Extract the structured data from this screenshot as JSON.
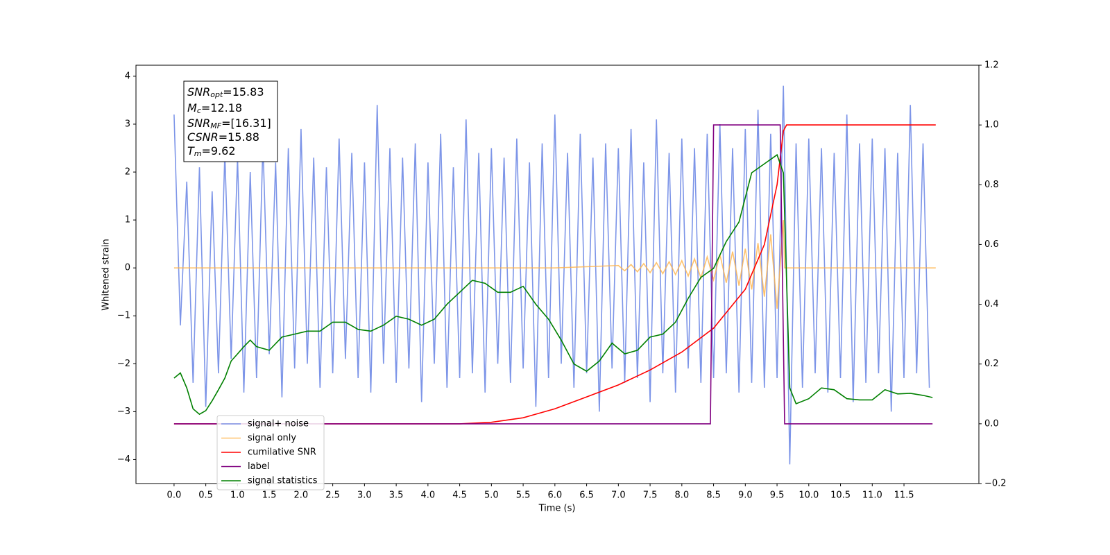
{
  "chart_data": {
    "type": "line",
    "xlabel": "Time (s)",
    "ylabel": "Whitened strain",
    "xlim": [
      -0.6,
      12.68
    ],
    "ylim": [
      -4.5,
      4.23
    ],
    "y2lim": [
      -0.2,
      1.2
    ],
    "xticks": [
      {
        "value": 0,
        "label": "0.0"
      },
      0.5,
      {
        "value": 1,
        "label": "1.0"
      },
      1.5,
      {
        "value": 2,
        "label": "2.0"
      },
      2.5,
      {
        "value": 3,
        "label": "3.0"
      },
      3.5,
      {
        "value": 4,
        "label": "4.0"
      },
      4.5,
      {
        "value": 5,
        "label": "5.0"
      },
      5.5,
      {
        "value": 6,
        "label": "6.0"
      },
      6.5,
      {
        "value": 7,
        "label": "7.0"
      },
      7.5,
      {
        "value": 8,
        "label": "8.0"
      },
      8.5,
      {
        "value": 9,
        "label": "9.0"
      },
      9.5,
      {
        "value": 10,
        "label": "10.0"
      },
      10.5,
      {
        "value": 11,
        "label": "11.0"
      },
      11.5
    ],
    "yticks": [
      {
        "value": -4,
        "label": "−4"
      },
      {
        "value": -3,
        "label": "−3"
      },
      {
        "value": -2,
        "label": "−2"
      },
      {
        "value": -1,
        "label": "−1"
      },
      0,
      1,
      2,
      3,
      4
    ],
    "y2ticks": [
      {
        "value": -0.2,
        "label": "−0.2"
      },
      {
        "value": 0,
        "label": "0.0"
      },
      0.2,
      0.4,
      0.6,
      0.8,
      {
        "value": 1,
        "label": "1.0"
      },
      1.2
    ],
    "annotation": [
      {
        "main": "SNR",
        "sub": "opt",
        "rest": "=15.83"
      },
      {
        "main": "M",
        "sub": "c",
        "rest": "=12.18"
      },
      {
        "main": "SNR",
        "sub": "MF",
        "rest": "=[16.31]"
      },
      {
        "main": "CSNR",
        "rest": "=15.88"
      },
      {
        "main": "T",
        "sub": "m",
        "rest": "=9.62"
      }
    ],
    "series": [
      {
        "name": "signal+ noise",
        "color": "#6f8ae6",
        "opacity": 0.9,
        "x": [
          0,
          0.1,
          0.2,
          0.3,
          0.4,
          0.5,
          0.6,
          0.7,
          0.8,
          0.9,
          1,
          1.1,
          1.2,
          1.3,
          1.4,
          1.5,
          1.6,
          1.7,
          1.8,
          1.9,
          2,
          2.1,
          2.2,
          2.3,
          2.4,
          2.5,
          2.6,
          2.7,
          2.8,
          2.9,
          3,
          3.1,
          3.2,
          3.3,
          3.4,
          3.5,
          3.6,
          3.7,
          3.8,
          3.9,
          4,
          4.1,
          4.2,
          4.3,
          4.4,
          4.5,
          4.6,
          4.7,
          4.8,
          4.9,
          5,
          5.1,
          5.2,
          5.3,
          5.4,
          5.5,
          5.6,
          5.7,
          5.8,
          5.9,
          6,
          6.1,
          6.2,
          6.3,
          6.4,
          6.5,
          6.6,
          6.7,
          6.8,
          6.9,
          7,
          7.1,
          7.2,
          7.3,
          7.4,
          7.5,
          7.6,
          7.7,
          7.8,
          7.9,
          8,
          8.1,
          8.2,
          8.3,
          8.4,
          8.5,
          8.6,
          8.7,
          8.8,
          8.9,
          9,
          9.1,
          9.2,
          9.3,
          9.4,
          9.5,
          9.6,
          9.7,
          9.8,
          9.9,
          10,
          10.1,
          10.2,
          10.3,
          10.4,
          10.5,
          10.6,
          10.7,
          10.8,
          10.9,
          11,
          11.1,
          11.2,
          11.3,
          11.4,
          11.5,
          11.6,
          11.7,
          11.8,
          11.9
        ],
        "values": [
          3.2,
          -1.2,
          1.8,
          -2.4,
          2.1,
          -2.9,
          1.6,
          -2.2,
          2.4,
          -1.9,
          2.3,
          -2.6,
          2.0,
          -2.3,
          2.6,
          -1.8,
          2.2,
          -2.7,
          2.5,
          -2.1,
          2.9,
          -2.0,
          2.3,
          -2.5,
          2.1,
          -2.2,
          2.7,
          -1.9,
          2.4,
          -2.3,
          2.2,
          -2.6,
          3.4,
          -2.0,
          2.5,
          -2.4,
          2.3,
          -2.1,
          2.6,
          -2.8,
          2.2,
          -2.0,
          2.8,
          -2.5,
          2.1,
          -2.3,
          3.1,
          -2.2,
          2.4,
          -2.6,
          2.5,
          -2.0,
          2.3,
          -2.4,
          2.7,
          -2.1,
          2.2,
          -2.9,
          2.6,
          -2.3,
          3.2,
          -2.0,
          2.4,
          -2.5,
          2.8,
          -2.2,
          2.3,
          -3.0,
          2.6,
          -2.1,
          2.5,
          -2.4,
          2.9,
          -2.3,
          2.2,
          -2.8,
          3.1,
          -2.2,
          2.4,
          -2.6,
          2.7,
          -2.1,
          2.5,
          -2.4,
          2.8,
          -2.3,
          3.0,
          -2.2,
          2.5,
          -2.6,
          2.9,
          -2.4,
          3.3,
          -2.5,
          2.8,
          -2.3,
          3.8,
          -4.1,
          2.6,
          -2.5,
          2.7,
          -2.2,
          2.5,
          -2.6,
          2.4,
          -2.3,
          3.2,
          -2.8,
          2.6,
          -2.4,
          2.7,
          -2.2,
          2.5,
          -3.0,
          2.4,
          -2.3,
          3.4,
          -2.2,
          2.6,
          -2.5
        ]
      },
      {
        "name": "signal only",
        "color": "#ffb347",
        "opacity": 0.8,
        "x": [
          0,
          6,
          7,
          7.1,
          7.2,
          7.3,
          7.4,
          7.5,
          7.6,
          7.7,
          7.8,
          7.9,
          8,
          8.1,
          8.2,
          8.3,
          8.4,
          8.5,
          8.6,
          8.7,
          8.8,
          8.9,
          9,
          9.1,
          9.2,
          9.3,
          9.4,
          9.5,
          9.6,
          9.62,
          12
        ],
        "values": [
          0,
          0,
          0.05,
          -0.06,
          0.07,
          -0.08,
          0.09,
          -0.1,
          0.11,
          -0.12,
          0.13,
          -0.14,
          0.15,
          -0.17,
          0.19,
          -0.21,
          0.23,
          -0.25,
          0.28,
          -0.31,
          0.34,
          -0.37,
          0.4,
          -0.45,
          0.52,
          -0.6,
          0.7,
          -0.85,
          1.0,
          0,
          0
        ]
      },
      {
        "name": "cumilative SNR",
        "color": "#ff0000",
        "axis": "y2",
        "x": [
          0,
          4.5,
          5,
          5.5,
          6,
          6.5,
          7,
          7.5,
          8,
          8.5,
          9,
          9.3,
          9.5,
          9.6,
          9.65,
          12
        ],
        "values": [
          0,
          0,
          0.005,
          0.02,
          0.05,
          0.09,
          0.13,
          0.18,
          0.24,
          0.32,
          0.45,
          0.6,
          0.8,
          0.98,
          1,
          1
        ]
      },
      {
        "name": "label",
        "color": "#800080",
        "axis": "y2",
        "x": [
          0,
          8.45,
          8.5,
          9.55,
          9.62,
          11.95
        ],
        "values": [
          0,
          0,
          1,
          1,
          0,
          0
        ]
      },
      {
        "name": "signal statistics",
        "color": "#008000",
        "axis": "y2",
        "x": [
          0,
          0.1,
          0.2,
          0.3,
          0.4,
          0.5,
          0.6,
          0.7,
          0.8,
          0.9,
          1,
          1.1,
          1.2,
          1.3,
          1.5,
          1.7,
          1.9,
          2.1,
          2.3,
          2.5,
          2.7,
          2.9,
          3.1,
          3.3,
          3.5,
          3.7,
          3.9,
          4.1,
          4.3,
          4.5,
          4.7,
          4.9,
          5.1,
          5.3,
          5.5,
          5.7,
          5.9,
          6.1,
          6.3,
          6.5,
          6.7,
          6.9,
          7.1,
          7.3,
          7.5,
          7.7,
          7.9,
          8.1,
          8.3,
          8.5,
          8.7,
          8.9,
          9.1,
          9.3,
          9.5,
          9.6,
          9.7,
          9.8,
          10,
          10.2,
          10.4,
          10.6,
          10.8,
          11,
          11.2,
          11.4,
          11.6,
          11.8,
          11.95
        ],
        "values": [
          0.153,
          0.17,
          0.12,
          0.05,
          0.032,
          0.044,
          0.077,
          0.114,
          0.153,
          0.21,
          0.234,
          0.258,
          0.28,
          0.258,
          0.246,
          0.29,
          0.3,
          0.31,
          0.31,
          0.34,
          0.34,
          0.316,
          0.31,
          0.33,
          0.36,
          0.35,
          0.33,
          0.35,
          0.4,
          0.44,
          0.48,
          0.47,
          0.44,
          0.44,
          0.46,
          0.4,
          0.35,
          0.28,
          0.2,
          0.176,
          0.21,
          0.27,
          0.234,
          0.246,
          0.29,
          0.3,
          0.34,
          0.42,
          0.49,
          0.52,
          0.61,
          0.675,
          0.84,
          0.87,
          0.9,
          0.84,
          0.12,
          0.067,
          0.084,
          0.12,
          0.114,
          0.084,
          0.08,
          0.08,
          0.114,
          0.1,
          0.102,
          0.095,
          0.088
        ]
      }
    ]
  }
}
